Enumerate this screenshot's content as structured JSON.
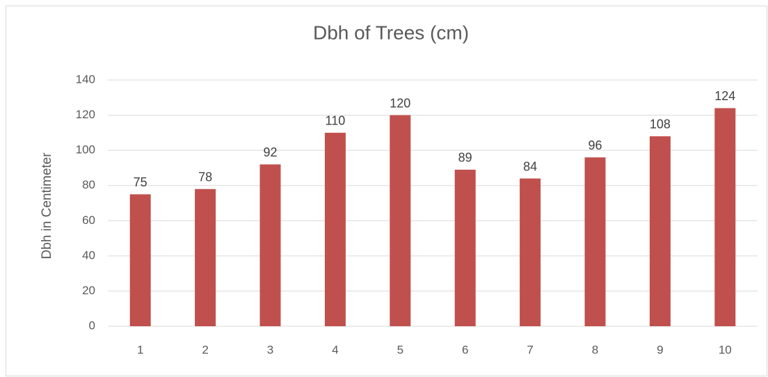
{
  "chart_data": {
    "type": "bar",
    "title": "Dbh of Trees (cm)",
    "y_label": "Dbh in Centimeter",
    "categories": [
      "1",
      "2",
      "3",
      "4",
      "5",
      "6",
      "7",
      "8",
      "9",
      "10"
    ],
    "values": [
      75,
      78,
      92,
      110,
      120,
      89,
      84,
      96,
      108,
      124
    ],
    "color": "#c0504d",
    "ylim": [
      0,
      140
    ],
    "yticks": [
      0,
      20,
      40,
      60,
      80,
      100,
      120,
      140
    ],
    "grid": true
  }
}
